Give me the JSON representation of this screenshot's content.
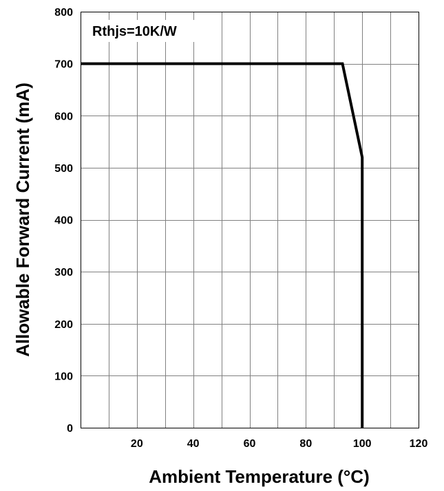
{
  "chart_data": {
    "type": "line",
    "xlabel": "Ambient Temperature (°C)",
    "ylabel": "Allowable Forward Current (mA)",
    "xlim": [
      0,
      120
    ],
    "ylim": [
      0,
      800
    ],
    "grid": true,
    "x_ticks": [
      20,
      40,
      60,
      80,
      100,
      120
    ],
    "x_tick_labels": [
      "20",
      "40",
      "60",
      "80",
      "100",
      "120"
    ],
    "x_minor_grid_step": 10,
    "y_ticks": [
      0,
      100,
      200,
      300,
      400,
      500,
      600,
      700,
      800
    ],
    "y_tick_labels": [
      "0",
      "100",
      "200",
      "300",
      "400",
      "500",
      "600",
      "700",
      "800"
    ],
    "annotation": "Rthjs=10K/W",
    "series": [
      {
        "x": [
          0,
          93,
          100,
          100
        ],
        "y": [
          700,
          700,
          520,
          0
        ]
      }
    ],
    "colors": {
      "line": "#000000",
      "grid": "#808080",
      "frame": "#000000",
      "background": "#ffffff"
    }
  }
}
